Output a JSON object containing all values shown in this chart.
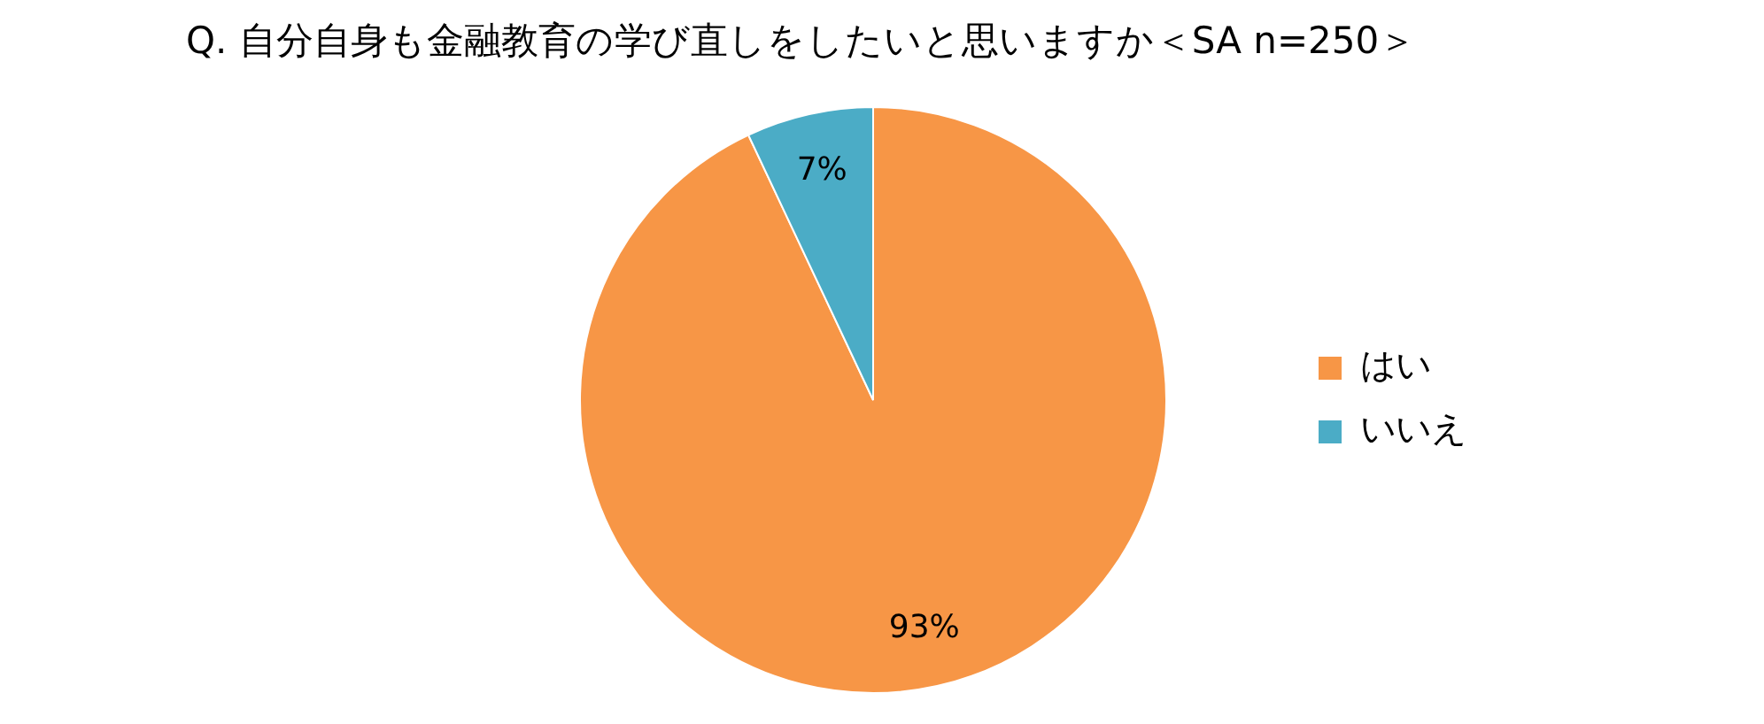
{
  "chart_data": {
    "type": "pie",
    "title": "Q. 自分自身も金融教育の学び直しをしたいと思いますか＜SA n=250＞",
    "categories": [
      "はい",
      "いいえ"
    ],
    "values": [
      93,
      7
    ],
    "colors": [
      "#f79646",
      "#4bacc6"
    ],
    "value_labels": [
      "93%",
      "7%"
    ],
    "legend": "right"
  }
}
